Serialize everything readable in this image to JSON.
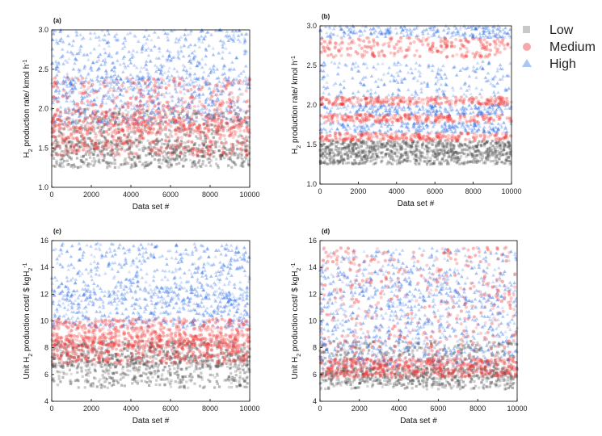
{
  "legend": [
    {
      "label": "Low",
      "marker": "square",
      "color": "#8c8c8c"
    },
    {
      "label": "Medium",
      "marker": "circle",
      "color": "#f06a6a"
    },
    {
      "label": "High",
      "marker": "triangle",
      "color": "#6aa6ee"
    }
  ],
  "chart_data": [
    {
      "panel": "(a)",
      "type": "scatter",
      "xlabel": "Data set #",
      "ylabel": "H₂ production rate/ kmol h⁻¹",
      "xlim": [
        0,
        10000
      ],
      "ylim": [
        1.0,
        3.0
      ],
      "xticks": [
        0,
        2000,
        4000,
        6000,
        8000,
        10000
      ],
      "yticks": [
        1.0,
        1.5,
        2.0,
        2.5,
        3.0
      ],
      "n_points_per_series": 10000,
      "series": [
        {
          "name": "Low",
          "color": "#4d4d4d",
          "bands": [
            {
              "min": 1.25,
              "max": 1.6
            },
            {
              "min": 1.4,
              "max": 2.0
            }
          ]
        },
        {
          "name": "Medium",
          "color": "#f03c3c",
          "bands": [
            {
              "min": 1.4,
              "max": 1.9
            },
            {
              "min": 1.7,
              "max": 2.4
            }
          ]
        },
        {
          "name": "High",
          "color": "#2e6ee8",
          "bands": [
            {
              "min": 1.8,
              "max": 2.4
            },
            {
              "min": 2.3,
              "max": 3.0
            }
          ]
        }
      ]
    },
    {
      "panel": "(b)",
      "type": "scatter",
      "xlabel": "Data set #",
      "ylabel": "H₂ production rate/ kmol h⁻¹",
      "xlim": [
        0,
        10000
      ],
      "ylim": [
        1.0,
        3.0
      ],
      "xticks": [
        0,
        2000,
        4000,
        6000,
        8000,
        10000
      ],
      "yticks": [
        1.0,
        1.5,
        2.0,
        2.5,
        3.0
      ],
      "n_points_per_series": 10000,
      "series": [
        {
          "name": "Low",
          "color": "#4d4d4d",
          "bands": [
            {
              "min": 1.25,
              "max": 1.55
            }
          ]
        },
        {
          "name": "Medium",
          "color": "#f03c3c",
          "bands": [
            {
              "min": 1.55,
              "max": 1.65
            },
            {
              "min": 1.78,
              "max": 1.88
            },
            {
              "min": 2.0,
              "max": 2.1
            },
            {
              "min": 2.6,
              "max": 2.85
            }
          ]
        },
        {
          "name": "High",
          "color": "#2e6ee8",
          "bands": [
            {
              "min": 1.65,
              "max": 1.78
            },
            {
              "min": 1.88,
              "max": 2.0
            },
            {
              "min": 2.1,
              "max": 2.55
            },
            {
              "min": 2.85,
              "max": 3.0
            }
          ]
        }
      ]
    },
    {
      "panel": "(c)",
      "type": "scatter",
      "xlabel": "Data set #",
      "ylabel": "Unit H₂ production cost/ $ kgH₂⁻¹",
      "xlim": [
        0,
        10000
      ],
      "ylim": [
        4,
        16
      ],
      "xticks": [
        0,
        2000,
        4000,
        6000,
        8000,
        10000
      ],
      "yticks": [
        4,
        6,
        8,
        10,
        12,
        14,
        16
      ],
      "n_points_per_series": 10000,
      "series": [
        {
          "name": "Low",
          "color": "#4d4d4d",
          "bands": [
            {
              "min": 5.0,
              "max": 7.5
            },
            {
              "min": 6.5,
              "max": 8.5
            }
          ]
        },
        {
          "name": "Medium",
          "color": "#f03c3c",
          "bands": [
            {
              "min": 6.8,
              "max": 9.0
            },
            {
              "min": 8.0,
              "max": 10.2
            }
          ]
        },
        {
          "name": "High",
          "color": "#2e6ee8",
          "bands": [
            {
              "min": 9.5,
              "max": 12.5
            },
            {
              "min": 11.5,
              "max": 15.8
            }
          ]
        }
      ]
    },
    {
      "panel": "(d)",
      "type": "scatter",
      "xlabel": "Data set #",
      "ylabel": "Unit H₂ production cost/ $ kgH₂⁻¹",
      "xlim": [
        0,
        10000
      ],
      "ylim": [
        4,
        16
      ],
      "xticks": [
        0,
        2000,
        4000,
        6000,
        8000,
        10000
      ],
      "yticks": [
        4,
        6,
        8,
        10,
        12,
        14,
        16
      ],
      "n_points_per_series": 10000,
      "series": [
        {
          "name": "Low",
          "color": "#4d4d4d",
          "bands": [
            {
              "min": 4.9,
              "max": 6.5
            },
            {
              "min": 5.5,
              "max": 8.5
            }
          ]
        },
        {
          "name": "Medium",
          "color": "#f03c3c",
          "bands": [
            {
              "min": 5.8,
              "max": 7.2
            },
            {
              "min": 6.0,
              "max": 15.5
            }
          ]
        },
        {
          "name": "High",
          "color": "#2e6ee8",
          "bands": [
            {
              "min": 7.0,
              "max": 15.5
            },
            {
              "min": 6.5,
              "max": 14.0
            }
          ]
        }
      ]
    }
  ]
}
